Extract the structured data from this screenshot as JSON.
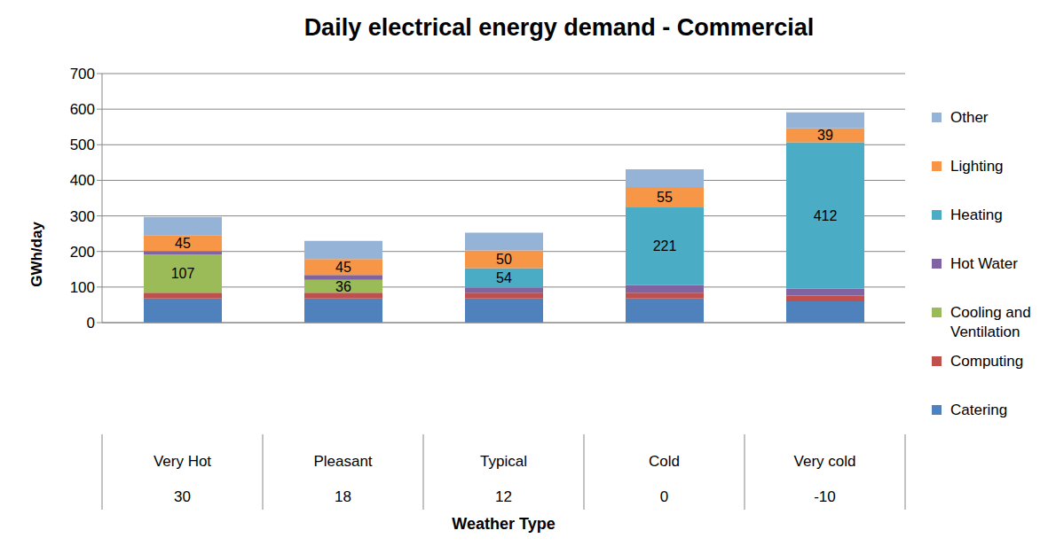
{
  "chart_data": {
    "type": "bar",
    "title": "Daily electrical energy demand - Commercial",
    "x_label": "Weather Type",
    "y_label": "GWh/day",
    "categories": [
      "Very Hot",
      "Pleasant",
      "Typical",
      "Cold",
      "Very cold"
    ],
    "temperatures": [
      30,
      18,
      12,
      0,
      -10
    ],
    "stacked": true,
    "grid": true,
    "legend": "right",
    "ylim": [
      0,
      700
    ],
    "yticks": [
      0,
      100,
      200,
      300,
      400,
      500,
      600,
      700
    ],
    "series": [
      {
        "name": "Catering",
        "color": "#4f81bd",
        "values": [
          68,
          68,
          68,
          68,
          60
        ]
      },
      {
        "name": "Computing",
        "color": "#c0504d",
        "values": [
          16,
          16,
          16,
          16,
          16
        ]
      },
      {
        "name": "Cooling and Ventilation",
        "color": "#9bbb59",
        "values": [
          107,
          36,
          null,
          null,
          null
        ],
        "data_labels": true
      },
      {
        "name": "Hot Water",
        "color": "#8064a2",
        "values": [
          10,
          14,
          15,
          21,
          19
        ]
      },
      {
        "name": "Heating",
        "color": "#4bacc6",
        "values": [
          null,
          null,
          54,
          221,
          412
        ],
        "data_labels": true
      },
      {
        "name": "Lighting",
        "color": "#f79646",
        "values": [
          45,
          45,
          50,
          55,
          39
        ],
        "data_labels": true
      },
      {
        "name": "Other",
        "color": "#95b3d7",
        "values": [
          51,
          51,
          50,
          50,
          45
        ]
      }
    ]
  }
}
